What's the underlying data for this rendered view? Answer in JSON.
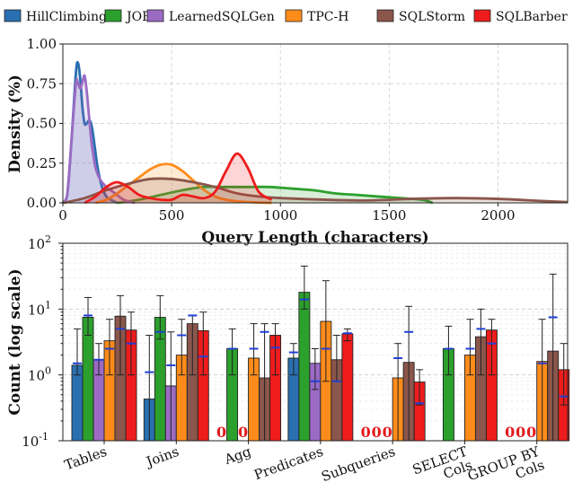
{
  "colors": {
    "HillClimbing": "#2a6fb0",
    "JOB": "#2ca02c",
    "LearnedSQLGen": "#9b6bc4",
    "TPC-H": "#ff8c1a",
    "SQLStorm": "#8b564b",
    "SQLBarber": "#ee1c1c",
    "mean_marker": "#1f3fd6"
  },
  "legend": [
    "HillClimbing",
    "JOB",
    "LearnedSQLGen",
    "TPC-H",
    "SQLStorm",
    "SQLBarber"
  ],
  "chart_data": [
    {
      "type": "area",
      "title": "",
      "xlabel": "Query Length (characters)",
      "ylabel": "Density (%)",
      "xlim": [
        0,
        2320
      ],
      "ylim": [
        0,
        1.0
      ],
      "xticks": [
        0,
        500,
        1000,
        1500,
        2000
      ],
      "yticks": [
        0.0,
        0.25,
        0.5,
        0.75,
        1.0
      ],
      "grid": true,
      "series": [
        {
          "name": "HillClimbing",
          "x": [
            0,
            20,
            40,
            60,
            70,
            80,
            90,
            100,
            110,
            120,
            130,
            140,
            160,
            180,
            200,
            220,
            250
          ],
          "y": [
            0,
            0.05,
            0.4,
            0.82,
            0.88,
            0.78,
            0.6,
            0.5,
            0.5,
            0.52,
            0.5,
            0.42,
            0.22,
            0.1,
            0.04,
            0.02,
            0
          ]
        },
        {
          "name": "JOB",
          "x": [
            250,
            350,
            450,
            550,
            650,
            750,
            850,
            950,
            1050,
            1150,
            1250,
            1350,
            1450,
            1550,
            1650,
            1700
          ],
          "y": [
            0,
            0.02,
            0.05,
            0.08,
            0.1,
            0.1,
            0.1,
            0.1,
            0.09,
            0.08,
            0.06,
            0.05,
            0.04,
            0.03,
            0.02,
            0
          ]
        },
        {
          "name": "LearnedSQLGen",
          "x": [
            0,
            20,
            40,
            60,
            70,
            80,
            90,
            100,
            110,
            120,
            130,
            140,
            150,
            170,
            200,
            240,
            280,
            330
          ],
          "y": [
            0,
            0.05,
            0.4,
            0.75,
            0.75,
            0.72,
            0.76,
            0.8,
            0.7,
            0.55,
            0.4,
            0.3,
            0.22,
            0.15,
            0.1,
            0.06,
            0.02,
            0
          ]
        },
        {
          "name": "TPC-H",
          "x": [
            150,
            200,
            250,
            300,
            350,
            400,
            450,
            500,
            550,
            600,
            650,
            700,
            750,
            800,
            850,
            900,
            960
          ],
          "y": [
            0,
            0.02,
            0.06,
            0.11,
            0.16,
            0.21,
            0.24,
            0.24,
            0.2,
            0.14,
            0.08,
            0.04,
            0.02,
            0.01,
            0.005,
            0.002,
            0
          ]
        },
        {
          "name": "SQLStorm",
          "x": [
            0,
            100,
            200,
            300,
            400,
            500,
            600,
            700,
            800,
            900,
            1000,
            1200,
            1400,
            1600,
            1800,
            2000,
            2200,
            2320
          ],
          "y": [
            0,
            0.03,
            0.08,
            0.12,
            0.15,
            0.15,
            0.13,
            0.1,
            0.06,
            0.04,
            0.03,
            0.02,
            0.015,
            0.025,
            0.03,
            0.025,
            0.012,
            0.005
          ]
        },
        {
          "name": "SQLBarber",
          "x": [
            100,
            150,
            200,
            250,
            300,
            350,
            400,
            450,
            500,
            550,
            600,
            650,
            700,
            750,
            800,
            850,
            900,
            960
          ],
          "y": [
            0,
            0.04,
            0.1,
            0.13,
            0.1,
            0.05,
            0.03,
            0.02,
            0.02,
            0.05,
            0.04,
            0.03,
            0.07,
            0.2,
            0.31,
            0.22,
            0.07,
            0.02
          ]
        }
      ]
    },
    {
      "type": "bar",
      "title": "",
      "xlabel": "",
      "ylabel": "Count (log scale)",
      "yscale": "log",
      "ylim": [
        0.1,
        100
      ],
      "yticks": [
        "10^-1",
        "10^0",
        "10^1",
        "10^2"
      ],
      "yticks_values": [
        0.1,
        1,
        10,
        100
      ],
      "grid": true,
      "categories": [
        "Tables",
        "Joins",
        "Agg",
        "Predicates",
        "Subqueries",
        "SELECT Cols",
        "GROUP BY Cols"
      ],
      "zero_label": "0",
      "series": [
        {
          "name": "HillClimbing",
          "values": [
            1.4,
            0.43,
            0,
            1.8,
            0,
            0,
            0
          ],
          "err_low": [
            1.0,
            0.1,
            0,
            1.0,
            0,
            0,
            0
          ],
          "err_high": [
            5.0,
            4.0,
            0,
            3.0,
            0,
            0,
            0
          ],
          "mean": [
            1.5,
            1.1,
            0,
            2.2,
            0,
            0,
            0
          ]
        },
        {
          "name": "JOB",
          "values": [
            7.5,
            7.5,
            2.5,
            18.0,
            0,
            2.5,
            0
          ],
          "err_low": [
            4.0,
            3.5,
            1.0,
            10.0,
            0,
            1.0,
            0
          ],
          "err_high": [
            15.0,
            16.0,
            5.0,
            45.0,
            0,
            5.5,
            0
          ],
          "mean": [
            8.0,
            4.5,
            2.5,
            14.0,
            0,
            2.5,
            0
          ]
        },
        {
          "name": "LearnedSQLGen",
          "values": [
            1.7,
            0.68,
            0,
            1.5,
            0,
            0,
            0
          ],
          "err_low": [
            1.0,
            0.1,
            0,
            0.6,
            0,
            0,
            0
          ],
          "err_high": [
            3.0,
            4.5,
            0,
            2.5,
            0,
            0,
            0
          ],
          "mean": [
            1.7,
            1.4,
            0,
            0.8,
            0,
            0,
            0
          ]
        },
        {
          "name": "TPC-H",
          "values": [
            3.3,
            2.0,
            1.8,
            6.5,
            0.9,
            2.0,
            1.6
          ],
          "err_low": [
            1.0,
            1.0,
            1.0,
            0.8,
            0.1,
            1.0,
            0.1
          ],
          "err_high": [
            7.0,
            7.0,
            6.0,
            27.0,
            3.0,
            7.0,
            7.0
          ],
          "mean": [
            2.5,
            4.0,
            2.5,
            2.5,
            1.8,
            2.5,
            1.5
          ]
        },
        {
          "name": "SQLStorm",
          "values": [
            7.8,
            6.0,
            0.9,
            1.7,
            1.55,
            3.8,
            2.3
          ],
          "err_low": [
            1.0,
            1.0,
            0.1,
            0.8,
            0.1,
            1.0,
            0.1
          ],
          "err_high": [
            16.0,
            8.0,
            6.0,
            4.0,
            11.0,
            10.0,
            34.0
          ],
          "mean": [
            5.0,
            8.0,
            4.5,
            0.8,
            4.5,
            5.0,
            7.5
          ]
        },
        {
          "name": "SQLBarber",
          "values": [
            4.8,
            4.7,
            4.0,
            4.2,
            0.78,
            4.8,
            1.2
          ],
          "err_low": [
            1.0,
            1.0,
            1.0,
            3.3,
            0.35,
            1.0,
            0.35
          ],
          "err_high": [
            9.0,
            9.0,
            6.0,
            5.0,
            1.2,
            7.0,
            3.0
          ],
          "mean": [
            3.0,
            1.9,
            2.6,
            4.3,
            0.37,
            3.0,
            0.47
          ]
        }
      ]
    }
  ]
}
